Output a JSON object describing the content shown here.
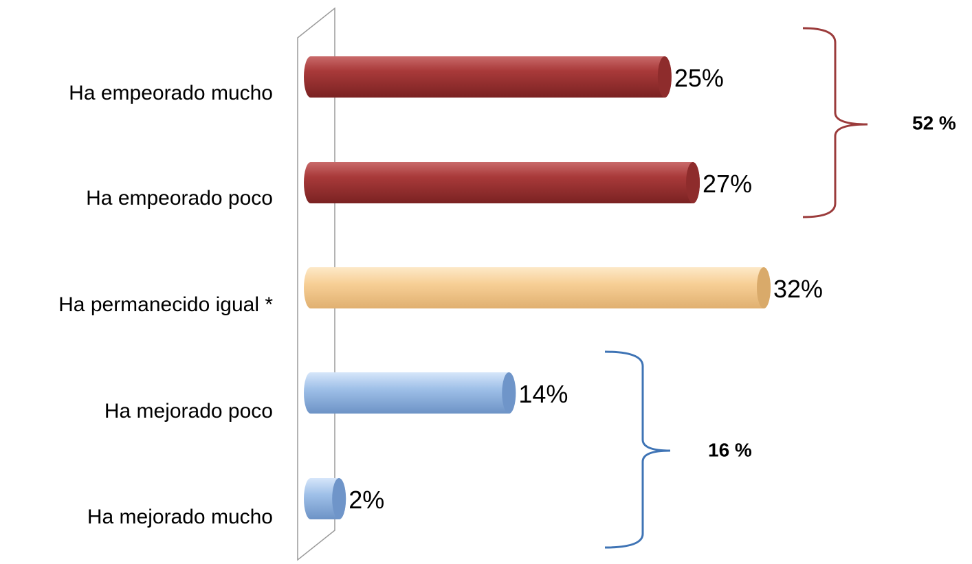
{
  "chart_data": {
    "type": "bar",
    "orientation": "horizontal",
    "grid": false,
    "legend": "none",
    "categories": [
      "Ha empeorado mucho",
      "Ha empeorado poco",
      "Ha permanecido igual *",
      "Ha mejorado poco",
      "Ha mejorado mucho"
    ],
    "values": [
      25,
      27,
      32,
      14,
      2
    ],
    "value_labels": [
      "25%",
      "27%",
      "32%",
      "14%",
      "2%"
    ],
    "xlim": [
      0,
      32
    ],
    "bar_colors": [
      "#a93a3a",
      "#a93a3a",
      "#f7cf96",
      "#9fc0e8",
      "#9fc0e8"
    ],
    "groups": [
      {
        "label": "52 %",
        "members": [
          "Ha empeorado mucho",
          "Ha empeorado poco"
        ],
        "color": "#9b3b3b"
      },
      {
        "label": "16 %",
        "members": [
          "Ha mejorado poco",
          "Ha mejorado mucho"
        ],
        "color": "#3f74b5"
      }
    ]
  }
}
